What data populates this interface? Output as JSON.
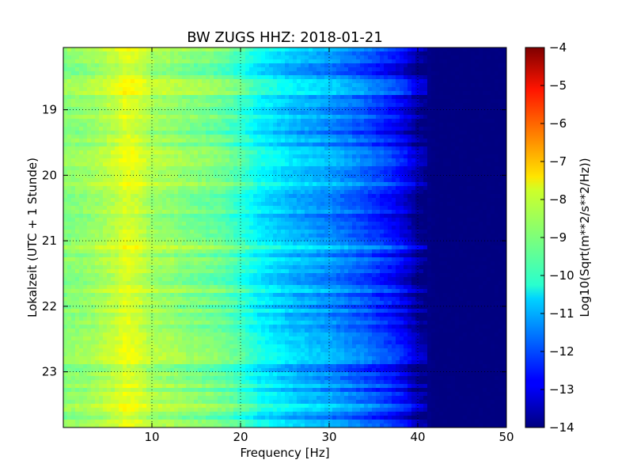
{
  "chart_data": {
    "type": "heatmap",
    "title": "BW ZUGS HHZ: 2018-01-21",
    "xlabel": "Frequency [Hz]",
    "ylabel": "Lokalzeit (UTC + 1 Stunde)",
    "xlim": [
      0,
      50
    ],
    "ylim": [
      18.05,
      23.85
    ],
    "y_inverted": true,
    "x_ticks": [
      10,
      20,
      30,
      40,
      50
    ],
    "y_ticks": [
      19,
      20,
      21,
      22,
      23
    ],
    "x_tick_labels": [
      "10",
      "20",
      "30",
      "40",
      "50"
    ],
    "y_tick_labels": [
      "19",
      "20",
      "21",
      "22",
      "23"
    ],
    "grid": true,
    "colormap": "jet",
    "colorbar": {
      "label": "Log10(Sqrt(m**2/s**2/Hz))",
      "range": [
        -14,
        -4
      ],
      "ticks": [
        -4,
        -5,
        -6,
        -7,
        -8,
        -9,
        -10,
        -11,
        -12,
        -13,
        -14
      ],
      "tick_labels": [
        "−4",
        "−5",
        "−6",
        "−7",
        "−8",
        "−9",
        "−10",
        "−11",
        "−12",
        "−13",
        "−14"
      ]
    },
    "spectrum_profile": {
      "frequency_hz": [
        0,
        2,
        4,
        6,
        7,
        8,
        9,
        10,
        12,
        14,
        16,
        18,
        20,
        22,
        24,
        26,
        28,
        30,
        32,
        34,
        36,
        37,
        38,
        39,
        40,
        41,
        42,
        45,
        50
      ],
      "log10_amplitude": [
        -8.9,
        -8.8,
        -8.6,
        -8.3,
        -8.0,
        -8.1,
        -8.3,
        -8.6,
        -8.7,
        -8.9,
        -9.0,
        -9.2,
        -9.6,
        -10.2,
        -10.5,
        -10.8,
        -11.0,
        -11.2,
        -11.5,
        -11.8,
        -12.2,
        -12.4,
        -12.7,
        -13.1,
        -13.6,
        -13.9,
        -14.0,
        -14.0,
        -14.0
      ]
    }
  }
}
